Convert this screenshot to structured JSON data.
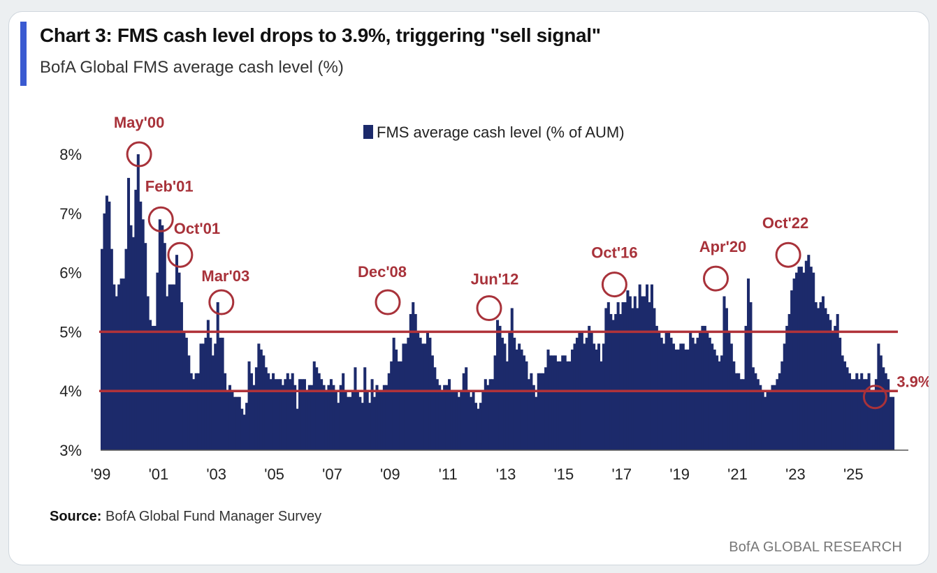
{
  "header": {
    "title": "Chart 3: FMS cash level drops to 3.9%, triggering \"sell signal\"",
    "subtitle": "BofA Global FMS average cash level (%)"
  },
  "footer": {
    "source_label": "Source:",
    "source_text": "BofA Global Fund Manager Survey",
    "brand": "BofA GLOBAL RESEARCH"
  },
  "colors": {
    "bars": "#1c2a6b",
    "reference_lines": "#b0333a",
    "annotations": "#a8323a",
    "accent": "#3a5ad1"
  },
  "chart_data": {
    "type": "bar",
    "title": "Chart 3: FMS cash level drops to 3.9%, triggering \"sell signal\"",
    "subtitle": "BofA Global FMS average cash level (%)",
    "ylim": [
      3,
      8
    ],
    "xlim": [
      1999.0,
      2026.9
    ],
    "yticks": [
      {
        "value": 3,
        "label": "3%"
      },
      {
        "value": 4,
        "label": "4%"
      },
      {
        "value": 5,
        "label": "5%"
      },
      {
        "value": 6,
        "label": "6%"
      },
      {
        "value": 7,
        "label": "7%"
      },
      {
        "value": 8,
        "label": "8%"
      }
    ],
    "xticks": [
      {
        "value": 1999.0,
        "label": "'99"
      },
      {
        "value": 2001.0,
        "label": "'01"
      },
      {
        "value": 2003.0,
        "label": "'03"
      },
      {
        "value": 2005.0,
        "label": "'05"
      },
      {
        "value": 2007.0,
        "label": "'07"
      },
      {
        "value": 2009.0,
        "label": "'09"
      },
      {
        "value": 2011.0,
        "label": "'11"
      },
      {
        "value": 2013.0,
        "label": "'13"
      },
      {
        "value": 2015.0,
        "label": "'15"
      },
      {
        "value": 2017.0,
        "label": "'17"
      },
      {
        "value": 2019.0,
        "label": "'19"
      },
      {
        "value": 2021.0,
        "label": "'21"
      },
      {
        "value": 2023.0,
        "label": "'23"
      },
      {
        "value": 2025.0,
        "label": "'25"
      }
    ],
    "legend": {
      "label": "FMS average cash level (% of AUM)",
      "position": "top-center"
    },
    "reference_lines": [
      5.0,
      4.0
    ],
    "grid": false,
    "series": [
      {
        "name": "FMS average cash level (% of AUM)",
        "x_start": 1999.0,
        "x_step": 0.0833,
        "values": [
          6.4,
          7.0,
          7.3,
          7.2,
          6.4,
          5.8,
          5.6,
          5.8,
          5.9,
          5.9,
          6.4,
          7.6,
          6.8,
          6.6,
          7.4,
          8.0,
          7.2,
          6.9,
          6.5,
          5.6,
          5.2,
          5.1,
          5.1,
          6.0,
          6.9,
          6.8,
          6.5,
          5.6,
          5.8,
          5.8,
          5.8,
          6.3,
          6.0,
          5.5,
          5.0,
          4.9,
          4.6,
          4.3,
          4.2,
          4.3,
          4.3,
          4.8,
          4.8,
          4.9,
          5.2,
          4.9,
          4.6,
          4.8,
          5.5,
          4.9,
          4.9,
          4.3,
          4.0,
          4.1,
          4.0,
          3.9,
          3.9,
          3.9,
          3.7,
          3.6,
          3.8,
          4.5,
          4.3,
          4.1,
          4.4,
          4.8,
          4.7,
          4.6,
          4.4,
          4.3,
          4.2,
          4.3,
          4.2,
          4.2,
          4.2,
          4.1,
          4.2,
          4.3,
          4.2,
          4.3,
          4.1,
          3.7,
          4.2,
          4.2,
          4.2,
          4.0,
          4.1,
          4.1,
          4.5,
          4.4,
          4.3,
          4.2,
          4.1,
          4.0,
          4.1,
          4.2,
          4.1,
          4.0,
          3.8,
          4.1,
          4.3,
          4.0,
          3.9,
          3.9,
          4.0,
          4.4,
          4.0,
          3.9,
          3.8,
          4.4,
          4.0,
          3.8,
          4.2,
          3.9,
          4.1,
          4.0,
          4.0,
          4.1,
          4.1,
          4.3,
          4.5,
          4.9,
          4.7,
          4.5,
          4.5,
          4.8,
          4.8,
          4.9,
          5.3,
          5.5,
          5.3,
          5.0,
          4.9,
          4.8,
          4.8,
          5.0,
          4.9,
          4.6,
          4.4,
          4.2,
          4.1,
          4.0,
          4.1,
          4.1,
          4.2,
          4.0,
          4.0,
          4.0,
          3.9,
          4.0,
          4.3,
          4.4,
          4.0,
          3.9,
          4.0,
          3.8,
          3.7,
          3.8,
          4.0,
          4.2,
          4.1,
          4.2,
          4.2,
          4.6,
          5.2,
          5.1,
          4.9,
          4.8,
          4.5,
          5.0,
          5.4,
          4.9,
          4.7,
          4.8,
          4.7,
          4.6,
          4.5,
          4.2,
          4.3,
          4.1,
          3.9,
          4.3,
          4.3,
          4.3,
          4.4,
          4.7,
          4.6,
          4.6,
          4.6,
          4.5,
          4.5,
          4.6,
          4.6,
          4.5,
          4.5,
          4.7,
          4.8,
          4.9,
          5.0,
          5.0,
          4.8,
          4.9,
          5.1,
          5.0,
          4.8,
          4.7,
          4.8,
          4.5,
          4.8,
          5.4,
          5.5,
          5.3,
          5.2,
          5.3,
          5.5,
          5.3,
          5.5,
          5.5,
          5.7,
          5.6,
          5.4,
          5.6,
          5.4,
          5.8,
          5.6,
          5.6,
          5.8,
          5.5,
          5.8,
          5.4,
          5.1,
          5.0,
          4.9,
          4.8,
          5.0,
          5.0,
          4.9,
          4.8,
          4.7,
          4.7,
          4.8,
          4.8,
          4.7,
          4.7,
          5.0,
          4.9,
          4.8,
          4.9,
          5.0,
          5.1,
          5.1,
          5.0,
          4.9,
          4.8,
          4.7,
          4.6,
          4.5,
          4.6,
          5.6,
          5.4,
          5.0,
          4.8,
          4.5,
          4.3,
          4.3,
          4.2,
          4.2,
          5.1,
          5.9,
          5.5,
          4.4,
          4.3,
          4.2,
          4.1,
          4.0,
          3.9,
          4.0,
          4.0,
          4.1,
          4.1,
          4.2,
          4.3,
          4.5,
          4.8,
          5.1,
          5.3,
          5.7,
          5.9,
          6.0,
          6.1,
          6.1,
          6.0,
          6.2,
          6.3,
          6.1,
          6.0,
          5.5,
          5.4,
          5.5,
          5.6,
          5.4,
          5.3,
          5.2,
          5.0,
          5.1,
          5.3,
          4.9,
          4.6,
          4.5,
          4.4,
          4.3,
          4.2,
          4.2,
          4.3,
          4.2,
          4.3,
          4.2,
          4.2,
          4.3,
          4.0,
          4.0,
          4.2,
          4.8,
          4.6,
          4.4,
          4.3,
          4.2,
          3.9,
          3.9
        ]
      }
    ],
    "annotations": [
      {
        "label": "May'00",
        "x": 2000.33,
        "y": 8.0
      },
      {
        "label": "Feb'01",
        "x": 2001.08,
        "y": 6.9
      },
      {
        "label": "Oct'01",
        "x": 2001.75,
        "y": 6.3
      },
      {
        "label": "Mar'03",
        "x": 2003.17,
        "y": 5.5
      },
      {
        "label": "Dec'08",
        "x": 2008.92,
        "y": 5.5
      },
      {
        "label": "Jun'12",
        "x": 2012.42,
        "y": 5.4
      },
      {
        "label": "Oct'16",
        "x": 2016.75,
        "y": 5.8
      },
      {
        "label": "Apr'20",
        "x": 2020.25,
        "y": 5.9
      },
      {
        "label": "Oct'22",
        "x": 2022.75,
        "y": 6.3
      },
      {
        "label": "3.9%",
        "x": 2025.75,
        "y": 3.9
      }
    ]
  }
}
